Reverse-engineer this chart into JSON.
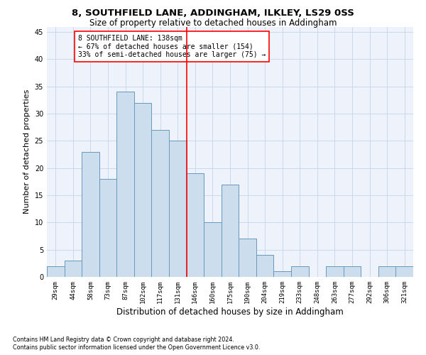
{
  "title1": "8, SOUTHFIELD LANE, ADDINGHAM, ILKLEY, LS29 0SS",
  "title2": "Size of property relative to detached houses in Addingham",
  "xlabel": "Distribution of detached houses by size in Addingham",
  "ylabel": "Number of detached properties",
  "footnote": "Contains HM Land Registry data © Crown copyright and database right 2024.\nContains public sector information licensed under the Open Government Licence v3.0.",
  "categories": [
    "29sqm",
    "44sqm",
    "58sqm",
    "73sqm",
    "87sqm",
    "102sqm",
    "117sqm",
    "131sqm",
    "146sqm",
    "160sqm",
    "175sqm",
    "190sqm",
    "204sqm",
    "219sqm",
    "233sqm",
    "248sqm",
    "263sqm",
    "277sqm",
    "292sqm",
    "306sqm",
    "321sqm"
  ],
  "values": [
    2,
    3,
    23,
    18,
    34,
    32,
    27,
    25,
    19,
    10,
    17,
    7,
    4,
    1,
    2,
    0,
    2,
    2,
    0,
    2,
    2
  ],
  "bar_color": "#ccdded",
  "bar_edge_color": "#6699bb",
  "bar_edge_width": 0.7,
  "vline_x_index": 7.5,
  "vline_color": "red",
  "annotation_text": "8 SOUTHFIELD LANE: 138sqm\n← 67% of detached houses are smaller (154)\n33% of semi-detached houses are larger (75) →",
  "annotation_box_edge_color": "red",
  "ylim": [
    0,
    46
  ],
  "yticks": [
    0,
    5,
    10,
    15,
    20,
    25,
    30,
    35,
    40,
    45
  ],
  "grid_color": "#c5d5e8",
  "background_color": "#eef3fb",
  "title_fontsize": 9.5,
  "subtitle_fontsize": 8.5,
  "tick_fontsize": 6.5,
  "ylabel_fontsize": 8,
  "xlabel_fontsize": 8.5,
  "annotation_fontsize": 7,
  "footnote_fontsize": 5.8
}
